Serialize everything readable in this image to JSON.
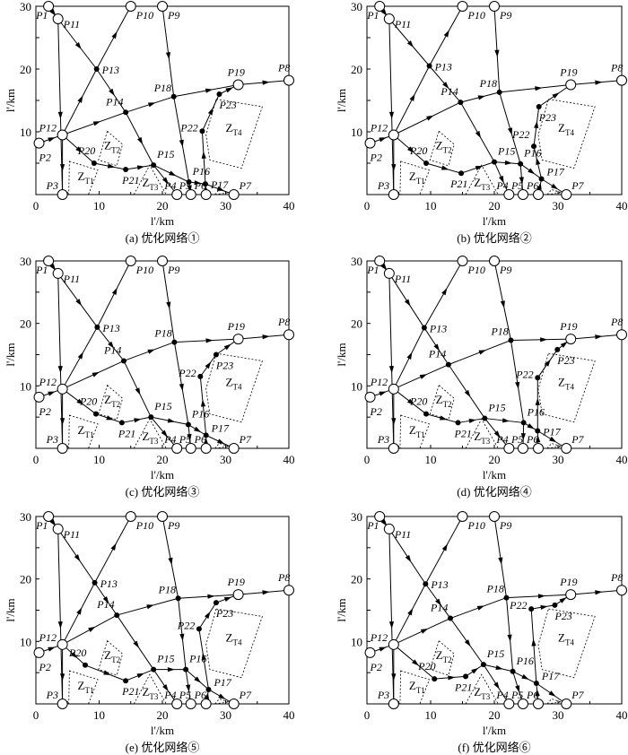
{
  "axes": {
    "xlabel": "l'/km",
    "ylabel": "l'/km",
    "xticks": [
      0,
      10,
      20,
      30,
      40
    ],
    "yticks": [
      10,
      20,
      30
    ],
    "xlim": [
      0,
      40
    ],
    "ylim": [
      0,
      30
    ]
  },
  "fixed_nodes": {
    "P1": [
      2,
      30
    ],
    "P11": [
      3.5,
      28
    ],
    "P10": [
      15,
      30
    ],
    "P9": [
      20,
      30
    ],
    "P2": [
      0.5,
      8.2
    ],
    "P12": [
      4.2,
      9.5
    ],
    "P3": [
      4.2,
      0
    ],
    "P4": [
      22.3,
      0
    ],
    "P5": [
      24.5,
      0
    ],
    "P6": [
      26.9,
      0
    ],
    "P7": [
      31.3,
      0
    ],
    "P8": [
      40,
      18.2
    ],
    "P19": [
      32,
      17.5
    ]
  },
  "obstacles": [
    {
      "name": "Z",
      "sub": "T1",
      "points": [
        [
          5.3,
          5.3
        ],
        [
          9.8,
          3.9
        ],
        [
          8.3,
          0
        ],
        [
          5.2,
          0
        ]
      ],
      "label_at": [
        6.6,
        2.3
      ]
    },
    {
      "name": "Z",
      "sub": "T2",
      "points": [
        [
          11.3,
          10.1
        ],
        [
          13.7,
          8
        ],
        [
          12.8,
          4.6
        ],
        [
          9.9,
          5.5
        ]
      ],
      "label_at": [
        10.8,
        7.2
      ]
    },
    {
      "name": "Z",
      "sub": "T3",
      "points": [
        [
          15.5,
          0
        ],
        [
          18,
          4.7
        ],
        [
          20.6,
          0
        ]
      ],
      "label_at": [
        16.8,
        1.3
      ]
    },
    {
      "name": "Z",
      "sub": "T4",
      "points": [
        [
          28.5,
          15.2
        ],
        [
          35.8,
          14
        ],
        [
          32.5,
          4.2
        ],
        [
          27.5,
          5.5
        ],
        [
          26.9,
          9.5
        ]
      ],
      "label_at": [
        30,
        10
      ]
    },
    {
      "name": "",
      "sub": "",
      "points": [
        [
          28.3,
          0
        ],
        [
          29,
          0.8
        ],
        [
          30.5,
          0.3
        ]
      ],
      "label_at": null
    }
  ],
  "panels": [
    {
      "caption": "(a) 优化网络①",
      "nodes": {
        "P13": [
          9.6,
          20
        ],
        "P14": [
          14.2,
          13.1
        ],
        "P18": [
          21.8,
          15.6
        ],
        "P20": [
          9.2,
          5
        ],
        "P21": [
          14.2,
          4
        ],
        "P15": [
          18.6,
          4.7
        ],
        "P16": [
          24.2,
          2
        ],
        "P17": [
          26.8,
          1.7
        ],
        "P22": [
          26.3,
          10.1
        ],
        "P23": [
          29,
          16
        ]
      }
    },
    {
      "caption": "(b) 优化网络②",
      "nodes": {
        "P13": [
          9.8,
          20.5
        ],
        "P14": [
          14.7,
          14.7
        ],
        "P18": [
          20.8,
          16.3
        ],
        "P20": [
          9.3,
          5
        ],
        "P21": [
          14.8,
          3.4
        ],
        "P15": [
          20,
          5.2
        ],
        "P16": [
          24.1,
          4.9
        ],
        "P17": [
          27.4,
          2.5
        ],
        "P22": [
          26.2,
          7.7
        ],
        "P23": [
          27,
          14
        ]
      }
    },
    {
      "caption": "(c) 优化网络③",
      "nodes": {
        "P13": [
          9.7,
          19.4
        ],
        "P14": [
          13.9,
          14
        ],
        "P18": [
          21.9,
          17
        ],
        "P20": [
          9.5,
          5.5
        ],
        "P21": [
          13.6,
          4.1
        ],
        "P15": [
          18.2,
          5
        ],
        "P16": [
          24.1,
          3.8
        ],
        "P17": [
          26.9,
          2.1
        ],
        "P22": [
          26,
          11.5
        ],
        "P23": [
          28.5,
          15
        ]
      }
    },
    {
      "caption": "(d) 优化网络④",
      "nodes": {
        "P13": [
          9,
          19.3
        ],
        "P14": [
          12.8,
          13.4
        ],
        "P18": [
          22.6,
          17.3
        ],
        "P20": [
          9.3,
          5.5
        ],
        "P21": [
          14.3,
          4.1
        ],
        "P15": [
          18.5,
          4.8
        ],
        "P16": [
          24.6,
          4.1
        ],
        "P17": [
          26.8,
          2.8
        ],
        "P22": [
          26.8,
          11.3
        ],
        "P23": [
          29.9,
          15.8
        ]
      }
    },
    {
      "caption": "(e) 优化网络⑤",
      "nodes": {
        "P13": [
          9.3,
          19.4
        ],
        "P14": [
          12.8,
          14.2
        ],
        "P18": [
          22.5,
          16.9
        ],
        "P20": [
          7.8,
          6.2
        ],
        "P21": [
          14.2,
          3.7
        ],
        "P15": [
          18.6,
          5.5
        ],
        "P16": [
          23.7,
          5.5
        ],
        "P17": [
          27.3,
          2.3
        ],
        "P22": [
          25.8,
          12
        ],
        "P23": [
          28.5,
          16.2
        ]
      }
    },
    {
      "caption": "(f) 优化网络⑥",
      "nodes": {
        "P13": [
          9.2,
          19.2
        ],
        "P14": [
          13.1,
          13.7
        ],
        "P18": [
          21.9,
          17
        ],
        "P20": [
          10.6,
          4
        ],
        "P21": [
          15.5,
          4.4
        ],
        "P15": [
          18.3,
          6.3
        ],
        "P16": [
          22.9,
          5.2
        ],
        "P17": [
          26.6,
          3.3
        ],
        "P22": [
          25.8,
          15.2
        ],
        "P23": [
          29.5,
          15.8
        ]
      }
    }
  ],
  "edges": [
    [
      "P1",
      "P11"
    ],
    [
      "P11",
      "P3"
    ],
    [
      "P11",
      "P13"
    ],
    [
      "P13",
      "P14"
    ],
    [
      "P14",
      "P15"
    ],
    [
      "P15",
      "P4"
    ],
    [
      "P12",
      "P13"
    ],
    [
      "P13",
      "P10"
    ],
    [
      "P2",
      "P12"
    ],
    [
      "P12",
      "P3"
    ],
    [
      "P12",
      "P14"
    ],
    [
      "P14",
      "P18"
    ],
    [
      "P18",
      "P19"
    ],
    [
      "P19",
      "P8"
    ],
    [
      "P9",
      "P18"
    ],
    [
      "P18",
      "P16"
    ],
    [
      "P16",
      "P5"
    ],
    [
      "P12",
      "P20"
    ],
    [
      "P20",
      "P21"
    ],
    [
      "P21",
      "P15"
    ],
    [
      "P15",
      "P16"
    ],
    [
      "P16",
      "P17"
    ],
    [
      "P17",
      "P7"
    ],
    [
      "P6",
      "P17"
    ],
    [
      "P17",
      "P22"
    ],
    [
      "P22",
      "P23"
    ],
    [
      "P23",
      "P19"
    ]
  ]
}
